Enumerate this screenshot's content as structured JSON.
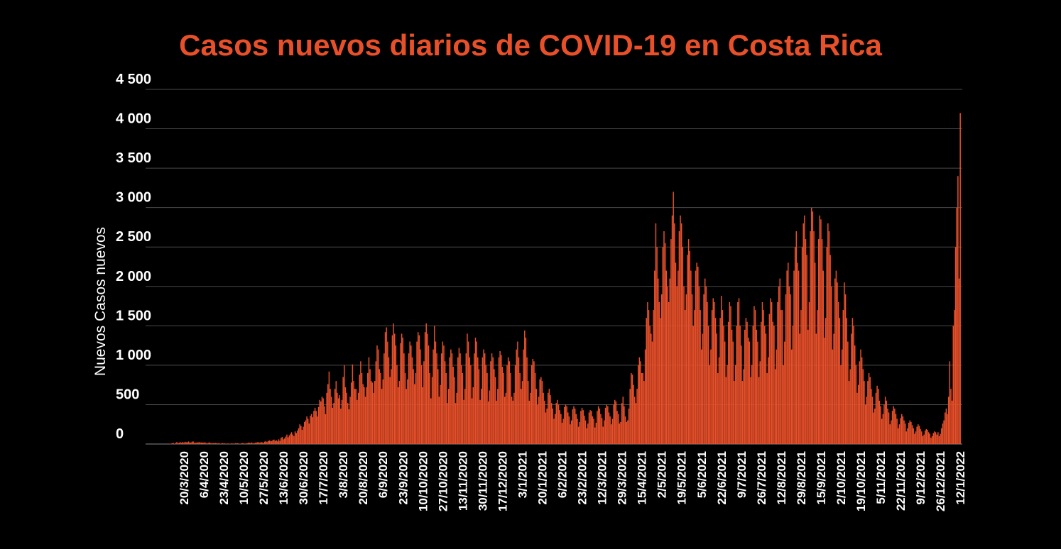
{
  "chart_data": {
    "type": "bar",
    "title": "Casos nuevos diarios de COVID-19 en Costa Rica",
    "y_label": "Nuevos Casos nuevos",
    "color": "#e8502a",
    "title_color": "#e8502a",
    "grid": true,
    "ylim": [
      0,
      4500
    ],
    "yticks": [
      0,
      500,
      {
        "value": 1000,
        "label": "1 000"
      },
      {
        "value": 1500,
        "label": "1 500"
      },
      {
        "value": 2000,
        "label": "2 000"
      },
      {
        "value": 2500,
        "label": "2 500"
      },
      {
        "value": 3000,
        "label": "3 000"
      },
      {
        "value": 3500,
        "label": "3 500"
      },
      {
        "value": 4000,
        "label": "4 000"
      },
      {
        "value": 4500,
        "label": "4 500"
      }
    ],
    "categories": [
      null,
      null,
      null,
      null,
      null,
      null,
      null,
      null,
      null,
      null,
      null,
      null,
      null,
      null,
      "20/3/2020",
      null,
      null,
      null,
      null,
      null,
      null,
      null,
      null,
      null,
      null,
      null,
      null,
      null,
      null,
      null,
      null,
      "6/4/2020",
      null,
      null,
      null,
      null,
      null,
      null,
      null,
      null,
      null,
      null,
      null,
      null,
      null,
      null,
      null,
      null,
      "23/4/2020",
      null,
      null,
      null,
      null,
      null,
      null,
      null,
      null,
      null,
      null,
      null,
      null,
      null,
      null,
      null,
      null,
      "10/5/2020",
      null,
      null,
      null,
      null,
      null,
      null,
      null,
      null,
      null,
      null,
      null,
      null,
      null,
      null,
      null,
      null,
      "27/5/2020",
      null,
      null,
      null,
      null,
      null,
      null,
      null,
      null,
      null,
      null,
      null,
      null,
      null,
      null,
      null,
      null,
      "13/6/2020",
      null,
      null,
      null,
      null,
      null,
      null,
      null,
      null,
      null,
      null,
      null,
      null,
      null,
      null,
      null,
      null,
      "30/6/2020",
      null,
      null,
      null,
      null,
      null,
      null,
      null,
      null,
      null,
      null,
      null,
      null,
      null,
      null,
      null,
      null,
      "17/7/2020",
      null,
      null,
      null,
      null,
      null,
      null,
      null,
      null,
      null,
      null,
      null,
      null,
      null,
      null,
      null,
      null,
      "3/8/2020",
      null,
      null,
      null,
      null,
      null,
      null,
      null,
      null,
      null,
      null,
      null,
      null,
      null,
      null,
      null,
      null,
      "20/8/2020",
      null,
      null,
      null,
      null,
      null,
      null,
      null,
      null,
      null,
      null,
      null,
      null,
      null,
      null,
      null,
      null,
      "6/9/2020",
      null,
      null,
      null,
      null,
      null,
      null,
      null,
      null,
      null,
      null,
      null,
      null,
      null,
      null,
      null,
      null,
      "23/9/2020",
      null,
      null,
      null,
      null,
      null,
      null,
      null,
      null,
      null,
      null,
      null,
      null,
      null,
      null,
      null,
      null,
      "10/10/2020",
      null,
      null,
      null,
      null,
      null,
      null,
      null,
      null,
      null,
      null,
      null,
      null,
      null,
      null,
      null,
      null,
      "27/10/2020",
      null,
      null,
      null,
      null,
      null,
      null,
      null,
      null,
      null,
      null,
      null,
      null,
      null,
      null,
      null,
      null,
      "13/11/2020",
      null,
      null,
      null,
      null,
      null,
      null,
      null,
      null,
      null,
      null,
      null,
      null,
      null,
      null,
      null,
      null,
      "30/11/2020",
      null,
      null,
      null,
      null,
      null,
      null,
      null,
      null,
      null,
      null,
      null,
      null,
      null,
      null,
      null,
      null,
      "17/12/2020",
      null,
      null,
      null,
      null,
      null,
      null,
      null,
      null,
      null,
      null,
      null,
      null,
      null,
      null,
      null,
      null,
      "3/1/2021",
      null,
      null,
      null,
      null,
      null,
      null,
      null,
      null,
      null,
      null,
      null,
      null,
      null,
      null,
      null,
      null,
      "20/1/2021",
      null,
      null,
      null,
      null,
      null,
      null,
      null,
      null,
      null,
      null,
      null,
      null,
      null,
      null,
      null,
      null,
      "6/2/2021",
      null,
      null,
      null,
      null,
      null,
      null,
      null,
      null,
      null,
      null,
      null,
      null,
      null,
      null,
      null,
      null,
      "23/2/2021",
      null,
      null,
      null,
      null,
      null,
      null,
      null,
      null,
      null,
      null,
      null,
      null,
      null,
      null,
      null,
      null,
      "12/3/2021",
      null,
      null,
      null,
      null,
      null,
      null,
      null,
      null,
      null,
      null,
      null,
      null,
      null,
      null,
      null,
      null,
      "29/3/2021",
      null,
      null,
      null,
      null,
      null,
      null,
      null,
      null,
      null,
      null,
      null,
      null,
      null,
      null,
      null,
      null,
      "15/4/2021",
      null,
      null,
      null,
      null,
      null,
      null,
      null,
      null,
      null,
      null,
      null,
      null,
      null,
      null,
      null,
      null,
      "2/5/2021",
      null,
      null,
      null,
      null,
      null,
      null,
      null,
      null,
      null,
      null,
      null,
      null,
      null,
      null,
      null,
      null,
      "19/5/2021",
      null,
      null,
      null,
      null,
      null,
      null,
      null,
      null,
      null,
      null,
      null,
      null,
      null,
      null,
      null,
      null,
      "5/6/2021",
      null,
      null,
      null,
      null,
      null,
      null,
      null,
      null,
      null,
      null,
      null,
      null,
      null,
      null,
      null,
      null,
      "22/6/2021",
      null,
      null,
      null,
      null,
      null,
      null,
      null,
      null,
      null,
      null,
      null,
      null,
      null,
      null,
      null,
      null,
      "9/7/2021",
      null,
      null,
      null,
      null,
      null,
      null,
      null,
      null,
      null,
      null,
      null,
      null,
      null,
      null,
      null,
      null,
      "26/7/2021",
      null,
      null,
      null,
      null,
      null,
      null,
      null,
      null,
      null,
      null,
      null,
      null,
      null,
      null,
      null,
      null,
      "12/8/2021",
      null,
      null,
      null,
      null,
      null,
      null,
      null,
      null,
      null,
      null,
      null,
      null,
      null,
      null,
      null,
      null,
      "29/8/2021",
      null,
      null,
      null,
      null,
      null,
      null,
      null,
      null,
      null,
      null,
      null,
      null,
      null,
      null,
      null,
      null,
      "15/9/2021",
      null,
      null,
      null,
      null,
      null,
      null,
      null,
      null,
      null,
      null,
      null,
      null,
      null,
      null,
      null,
      null,
      "2/10/2021",
      null,
      null,
      null,
      null,
      null,
      null,
      null,
      null,
      null,
      null,
      null,
      null,
      null,
      null,
      null,
      null,
      "19/10/2021",
      null,
      null,
      null,
      null,
      null,
      null,
      null,
      null,
      null,
      null,
      null,
      null,
      null,
      null,
      null,
      null,
      "5/11/2021",
      null,
      null,
      null,
      null,
      null,
      null,
      null,
      null,
      null,
      null,
      null,
      null,
      null,
      null,
      null,
      null,
      "22/11/2021",
      null,
      null,
      null,
      null,
      null,
      null,
      null,
      null,
      null,
      null,
      null,
      null,
      null,
      null,
      null,
      null,
      "9/12/2021",
      null,
      null,
      null,
      null,
      null,
      null,
      null,
      null,
      null,
      null,
      null,
      null,
      null,
      null,
      null,
      null,
      "26/12/2021",
      null,
      null,
      null,
      null,
      null,
      null,
      null,
      null,
      null,
      null,
      null,
      null,
      null,
      null,
      null,
      null,
      "12/1/2022"
    ],
    "values": [
      1,
      0,
      4,
      5,
      9,
      13,
      4,
      13,
      26,
      9,
      17,
      23,
      15,
      25,
      17,
      29,
      22,
      24,
      32,
      20,
      18,
      30,
      32,
      15,
      17,
      19,
      20,
      23,
      20,
      19,
      18,
      18,
      21,
      12,
      8,
      14,
      21,
      11,
      8,
      12,
      10,
      13,
      10,
      8,
      12,
      5,
      6,
      12,
      7,
      8,
      4,
      7,
      6,
      3,
      5,
      8,
      6,
      5,
      11,
      8,
      10,
      6,
      3,
      7,
      12,
      9,
      5,
      8,
      10,
      16,
      15,
      13,
      20,
      8,
      12,
      16,
      19,
      23,
      21,
      18,
      25,
      20,
      15,
      30,
      35,
      28,
      38,
      45,
      40,
      35,
      51,
      56,
      39,
      49,
      34,
      60,
      40,
      80,
      90,
      60,
      70,
      95,
      120,
      85,
      110,
      130,
      150,
      120,
      100,
      160,
      140,
      170,
      200,
      250,
      230,
      180,
      220,
      280,
      300,
      350,
      320,
      260,
      360,
      380,
      340,
      420,
      460,
      420,
      350,
      470,
      560,
      540,
      600,
      580,
      480,
      380,
      650,
      760,
      920,
      700,
      600,
      460,
      520,
      700,
      800,
      650,
      580,
      620,
      450,
      560,
      850,
      1000,
      720,
      650,
      520,
      440,
      600,
      780,
      1010,
      800,
      700,
      700,
      560,
      650,
      880,
      1050,
      900,
      760,
      720,
      600,
      720,
      900,
      1100,
      950,
      800,
      780,
      650,
      800,
      1050,
      1250,
      1200,
      950,
      900,
      700,
      820,
      1150,
      1420,
      1480,
      1300,
      1100,
      850,
      950,
      1380,
      1530,
      1400,
      1250,
      1000,
      720,
      800,
      1280,
      1400,
      1350,
      1150,
      900,
      700,
      820,
      1150,
      1300,
      1250,
      1100,
      950,
      760,
      900,
      1300,
      1420,
      1380,
      1200,
      1000,
      720,
      1050,
      1420,
      1530,
      1400,
      1250,
      900,
      580,
      850,
      1200,
      1500,
      1300,
      1150,
      950,
      600,
      750,
      1150,
      1300,
      1250,
      1050,
      900,
      520,
      700,
      1100,
      1200,
      1150,
      980,
      850,
      520,
      650,
      1100,
      1220,
      1150,
      1000,
      900,
      560,
      700,
      1150,
      1400,
      1300,
      1100,
      1000,
      580,
      720,
      1150,
      1350,
      1300,
      1100,
      950,
      560,
      700,
      1100,
      1200,
      1150,
      1000,
      900,
      540,
      680,
      1050,
      1150,
      1100,
      950,
      850,
      550,
      700,
      1100,
      1180,
      1130,
      980,
      900,
      600,
      650,
      1000,
      1100,
      1050,
      900,
      600,
      550,
      650,
      1000,
      1200,
      1300,
      1100,
      900,
      700,
      800,
      1200,
      1440,
      1350,
      1100,
      800,
      550,
      650,
      1000,
      1080,
      1050,
      900,
      700,
      500,
      600,
      820,
      850,
      800,
      650,
      550,
      400,
      450,
      650,
      700,
      620,
      520,
      450,
      320,
      380,
      520,
      560,
      500,
      430,
      380,
      270,
      320,
      470,
      500,
      480,
      400,
      350,
      250,
      300,
      440,
      480,
      450,
      380,
      320,
      220,
      280,
      420,
      460,
      430,
      360,
      300,
      200,
      260,
      400,
      430,
      420,
      350,
      320,
      210,
      270,
      420,
      480,
      450,
      380,
      330,
      220,
      300,
      460,
      500,
      480,
      400,
      350,
      250,
      320,
      500,
      560,
      540,
      420,
      380,
      260,
      280,
      520,
      600,
      480,
      350,
      280,
      300,
      450,
      700,
      900,
      880,
      750,
      600,
      520,
      700,
      1000,
      1100,
      1050,
      900,
      900,
      800,
      1200,
      1600,
      1800,
      1700,
      1500,
      1400,
      1300,
      1700,
      2200,
      2800,
      2500,
      2100,
      1800,
      1600,
      1900,
      2500,
      2700,
      2550,
      2200,
      2000,
      1800,
      2100,
      2600,
      2900,
      3200,
      2800,
      2300,
      2000,
      2200,
      2700,
      2900,
      2800,
      2500,
      2000,
      1700,
      1900,
      2400,
      2600,
      2450,
      2200,
      1900,
      1500,
      1700,
      2200,
      2300,
      2250,
      2000,
      1700,
      1200,
      1400,
      1900,
      2100,
      2000,
      1800,
      1500,
      1000,
      1200,
      1700,
      1850,
      1800,
      1600,
      1400,
      900,
      1100,
      1600,
      1880,
      1700,
      1500,
      1300,
      850,
      1000,
      1550,
      1800,
      1750,
      1450,
      1300,
      800,
      1000,
      1500,
      1800,
      1850,
      1500,
      1250,
      800,
      950,
      1450,
      1600,
      1550,
      1350,
      1300,
      850,
      1000,
      1500,
      1750,
      1700,
      1450,
      1300,
      850,
      1050,
      1550,
      1800,
      1700,
      1500,
      1400,
      900,
      1100,
      1650,
      1850,
      1800,
      1550,
      1500,
      950,
      1200,
      1800,
      2000,
      2100,
      1700,
      1700,
      1000,
      1300,
      1900,
      2200,
      2300,
      2000,
      1900,
      1200,
      1500,
      2200,
      2500,
      2700,
      2300,
      2200,
      1400,
      1700,
      2500,
      2800,
      2900,
      2600,
      2400,
      1450,
      1800,
      2700,
      3000,
      2950,
      2700,
      2300,
      1400,
      1700,
      2600,
      2900,
      2850,
      2600,
      2200,
      1350,
      1600,
      2500,
      2800,
      2700,
      2400,
      2000,
      1200,
      1400,
      2100,
      2200,
      2050,
      1800,
      1600,
      1000,
      1200,
      1700,
      2050,
      1900,
      1600,
      1300,
      800,
      950,
      1400,
      1600,
      1500,
      1250,
      1000,
      650,
      750,
      1050,
      1200,
      1100,
      950,
      800,
      500,
      600,
      800,
      900,
      850,
      700,
      600,
      400,
      450,
      650,
      740,
      700,
      550,
      480,
      320,
      380,
      500,
      600,
      550,
      450,
      400,
      250,
      300,
      420,
      480,
      450,
      380,
      320,
      200,
      250,
      330,
      380,
      350,
      300,
      260,
      160,
      200,
      270,
      300,
      280,
      240,
      200,
      130,
      160,
      220,
      250,
      230,
      190,
      160,
      100,
      120,
      170,
      190,
      180,
      150,
      130,
      80,
      100,
      140,
      160,
      150,
      120,
      150,
      100,
      130,
      200,
      260,
      300,
      400,
      450,
      380,
      600,
      1050,
      700,
      550,
      1500,
      1700,
      2500,
      3000,
      3400,
      2100,
      4200
    ]
  }
}
